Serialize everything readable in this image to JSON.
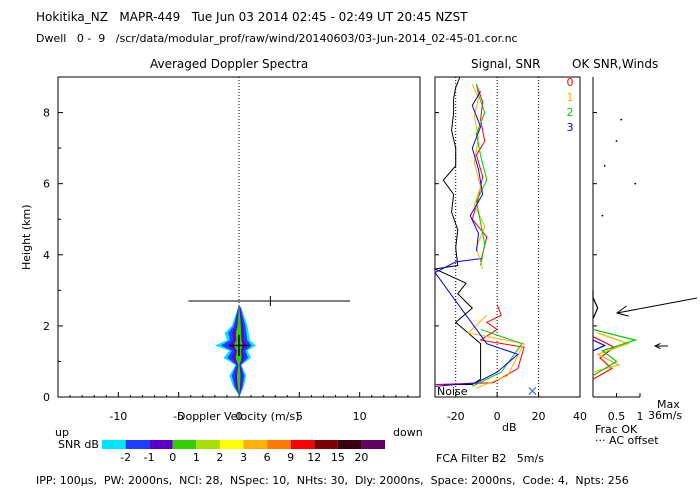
{
  "header": {
    "line1": "Hokitika_NZ   MAPR-449   Tue Jun 03 2014 02:45 - 02:49 UT 20:45 NZST",
    "line2": "Dwell   0 -  9   /scr/data/modular_prof/raw/wind/20140603/03-Jun-2014_02-45-01.cor.nc"
  },
  "footer": {
    "params": "IPP: 100μs,  PW: 2000ns,  NCI: 28,  NSpec: 10,  NHts: 30,  Dly: 2000ns,  Space: 2000ns,  Code: 4,  Npts: 256",
    "filter": "FCA Filter B2   5m/s"
  },
  "snr_scale": {
    "up": "up",
    "label": "SNR dB",
    "down": "down",
    "colors": [
      "#00e5ff",
      "#1e3cff",
      "#5a00c8",
      "#30d000",
      "#a8e000",
      "#ffff00",
      "#ffb000",
      "#ff7a00",
      "#ff0000",
      "#800000",
      "#3a0010",
      "#600060"
    ],
    "ticks": [
      "-2",
      "-1",
      "0",
      "1",
      "2",
      "3",
      "6",
      "9",
      "12",
      "15",
      "20"
    ]
  },
  "max_label": {
    "line1": "Max",
    "line2": "36m/s"
  },
  "chart_data": [
    {
      "type": "heatmap",
      "title": "Averaged Doppler Spectra",
      "xlabel": "Doppler Velocity (m/s)",
      "ylabel": "Height (km)",
      "xlim": [
        -15,
        15
      ],
      "ylim": [
        0,
        9
      ],
      "xticks": [
        "-10",
        "-5",
        "0",
        "5",
        "10"
      ],
      "yticks": [
        "0",
        "2",
        "4",
        "6",
        "8"
      ],
      "spectrum_outline": [
        [
          0.05,
          0
        ],
        [
          0.3,
          -0.5
        ],
        [
          0.6,
          -0.8
        ],
        [
          0.9,
          -0.3
        ],
        [
          1.1,
          -1.3
        ],
        [
          1.3,
          -0.8
        ],
        [
          1.45,
          -2.0
        ],
        [
          1.6,
          -1.0
        ],
        [
          1.8,
          -1.2
        ],
        [
          2.0,
          -0.6
        ],
        [
          2.3,
          -0.3
        ],
        [
          2.5,
          -0.1
        ],
        [
          2.6,
          0
        ],
        [
          2.5,
          0.2
        ],
        [
          2.3,
          0.4
        ],
        [
          2.0,
          0.7
        ],
        [
          1.8,
          0.8
        ],
        [
          1.6,
          0.9
        ],
        [
          1.45,
          1.4
        ],
        [
          1.3,
          0.7
        ],
        [
          1.1,
          1.0
        ],
        [
          0.9,
          0.2
        ],
        [
          0.6,
          0.6
        ],
        [
          0.3,
          0.4
        ],
        [
          0.05,
          0.1
        ]
      ],
      "wind_error_bar": {
        "height": 2.7,
        "velocity": 2.6,
        "vmin": -4.2,
        "vmax": 9.2
      },
      "peak_marker": {
        "height": 1.45,
        "velocity": 0
      }
    },
    {
      "type": "line",
      "title": "Signal, SNR",
      "xlabel": "dB",
      "xlim": [
        -30,
        40
      ],
      "ylim": [
        0,
        9
      ],
      "xticks": [
        "-20",
        "0",
        "20",
        "40"
      ],
      "dotted_lines_x": [
        -20,
        0,
        20
      ],
      "legend": [
        {
          "name": "0",
          "color": "#ff0000"
        },
        {
          "name": "1",
          "color": "#ffb000"
        },
        {
          "name": "2",
          "color": "#00cc00"
        },
        {
          "name": "3",
          "color": "#0000ff"
        }
      ],
      "noise_label": "Noise",
      "noise_marker": {
        "x": 17,
        "height": 0.15
      },
      "series": [
        {
          "name": "Noise",
          "color": "#000000",
          "points": [
            [
              -30,
              0.35
            ],
            [
              -12,
              0.35
            ],
            [
              -8,
              0.5
            ],
            [
              -8,
              1.1
            ],
            [
              -8,
              1.5
            ],
            [
              -14,
              1.8
            ],
            [
              -20,
              2.1
            ],
            [
              -12,
              2.5
            ],
            [
              -19,
              2.9
            ],
            [
              -15,
              3.2
            ],
            [
              -30,
              3.6
            ],
            [
              -19,
              3.7
            ],
            [
              -20,
              4.2
            ],
            [
              -19,
              4.7
            ],
            [
              -22,
              5.2
            ],
            [
              -21,
              5.7
            ],
            [
              -26,
              6.1
            ],
            [
              -20,
              6.5
            ],
            [
              -20,
              7.0
            ],
            [
              -22,
              7.5
            ],
            [
              -21,
              8.0
            ],
            [
              -21,
              8.4
            ],
            [
              -20,
              8.7
            ],
            [
              -18,
              9.0
            ]
          ]
        },
        {
          "name": "0",
          "color": "#ff0000",
          "points": [
            [
              -30,
              0.35
            ],
            [
              -2,
              0.4
            ],
            [
              10,
              0.8
            ],
            [
              13,
              1.4
            ],
            [
              -8,
              1.6
            ],
            [
              0,
              1.9
            ],
            [
              -5,
              2.1
            ],
            [
              2,
              2.3
            ],
            [
              0,
              2.6
            ]
          ]
        },
        {
          "name": "1",
          "color": "#ffb000",
          "points": [
            [
              -10,
              0.25
            ],
            [
              5,
              0.6
            ],
            [
              13,
              1.5
            ],
            [
              -14,
              1.8
            ],
            [
              -5,
              2.3
            ]
          ]
        },
        {
          "name": "2",
          "color": "#00cc00",
          "points": [
            [
              -12,
              0.3
            ],
            [
              2,
              0.7
            ],
            [
              12,
              1.5
            ],
            [
              -8,
              1.9
            ]
          ]
        },
        {
          "name": "3",
          "color": "#0000ff",
          "points": [
            [
              -30,
              0.3
            ],
            [
              -10,
              0.4
            ],
            [
              0,
              0.7
            ],
            [
              10,
              1.2
            ],
            [
              -5,
              1.5
            ],
            [
              -30,
              3.5
            ],
            [
              -20,
              3.8
            ],
            [
              -7,
              3.9
            ]
          ]
        },
        {
          "name": "0",
          "color": "#ff0000",
          "points": [
            [
              -8,
              3.8
            ],
            [
              -5,
              4.5
            ],
            [
              -12,
              5.0
            ],
            [
              -9,
              5.6
            ],
            [
              -7,
              6.2
            ],
            [
              -10,
              6.8
            ],
            [
              -6,
              7.2
            ],
            [
              -8,
              7.8
            ],
            [
              -7,
              8.3
            ],
            [
              -10,
              8.8
            ]
          ]
        },
        {
          "name": "1",
          "color": "#ffb000",
          "points": [
            [
              -7,
              3.6
            ],
            [
              -10,
              4.2
            ],
            [
              -6,
              4.8
            ],
            [
              -11,
              5.4
            ],
            [
              -8,
              5.9
            ],
            [
              -11,
              6.6
            ],
            [
              -9,
              7.3
            ],
            [
              -11,
              7.9
            ],
            [
              -9,
              8.4
            ],
            [
              -12,
              8.8
            ]
          ]
        },
        {
          "name": "2",
          "color": "#00cc00",
          "points": [
            [
              -8,
              3.7
            ],
            [
              -6,
              4.3
            ],
            [
              -8,
              4.9
            ],
            [
              -10,
              5.5
            ],
            [
              -5,
              6.1
            ],
            [
              -8,
              6.8
            ],
            [
              -10,
              7.4
            ],
            [
              -6,
              8.0
            ],
            [
              -9,
              8.5
            ],
            [
              -10,
              8.8
            ]
          ]
        },
        {
          "name": "3",
          "color": "#0000ff",
          "points": [
            [
              -10,
              4.1
            ],
            [
              -9,
              4.6
            ],
            [
              -13,
              5.1
            ],
            [
              -7,
              5.7
            ],
            [
              -9,
              6.4
            ],
            [
              -12,
              7.0
            ],
            [
              -8,
              7.6
            ],
            [
              -12,
              8.2
            ],
            [
              -8,
              8.6
            ]
          ]
        }
      ]
    },
    {
      "type": "line",
      "title": "OK SNR,Winds",
      "xlabel": "Frac OK",
      "xlim": [
        0,
        1
      ],
      "ylim": [
        0,
        9
      ],
      "xticks": [
        "0.5",
        "1"
      ],
      "note": "··· AC offset",
      "series": [
        {
          "name": "0",
          "color": "#ff0000",
          "points": [
            [
              0.0,
              0.5
            ],
            [
              0.4,
              0.8
            ],
            [
              0.15,
              1.1
            ],
            [
              0.45,
              1.4
            ],
            [
              0.0,
              1.7
            ]
          ]
        },
        {
          "name": "1",
          "color": "#ffb000",
          "points": [
            [
              0.0,
              0.7
            ],
            [
              0.55,
              0.9
            ],
            [
              0.1,
              1.2
            ],
            [
              0.75,
              1.5
            ],
            [
              0.1,
              1.8
            ]
          ]
        },
        {
          "name": "2",
          "color": "#00cc00",
          "points": [
            [
              0.0,
              0.6
            ],
            [
              0.5,
              1.0
            ],
            [
              0.2,
              1.3
            ],
            [
              0.9,
              1.6
            ],
            [
              0.0,
              1.9
            ]
          ]
        },
        {
          "name": "3",
          "color": "#0000ff",
          "points": [
            [
              0.0,
              1.3
            ],
            [
              0.25,
              1.45
            ],
            [
              0.0,
              1.6
            ]
          ]
        },
        {
          "name": "ac",
          "color": "#000000",
          "points": [
            [
              0.0,
              2.2
            ],
            [
              0.1,
              2.5
            ],
            [
              0.0,
              2.8
            ],
            [
              0.0,
              3.0
            ]
          ]
        }
      ],
      "scatter_points": [
        [
          0.5,
          7.2
        ],
        [
          0.25,
          6.5
        ],
        [
          0.9,
          6.0
        ],
        [
          0.2,
          5.1
        ],
        [
          0.6,
          7.8
        ]
      ],
      "wind_arrows": [
        {
          "height": 2.4,
          "dx": -1.5,
          "dy": 0.4
        },
        {
          "height": 1.45,
          "dx": -1.0,
          "dy": 0.0
        }
      ]
    }
  ]
}
